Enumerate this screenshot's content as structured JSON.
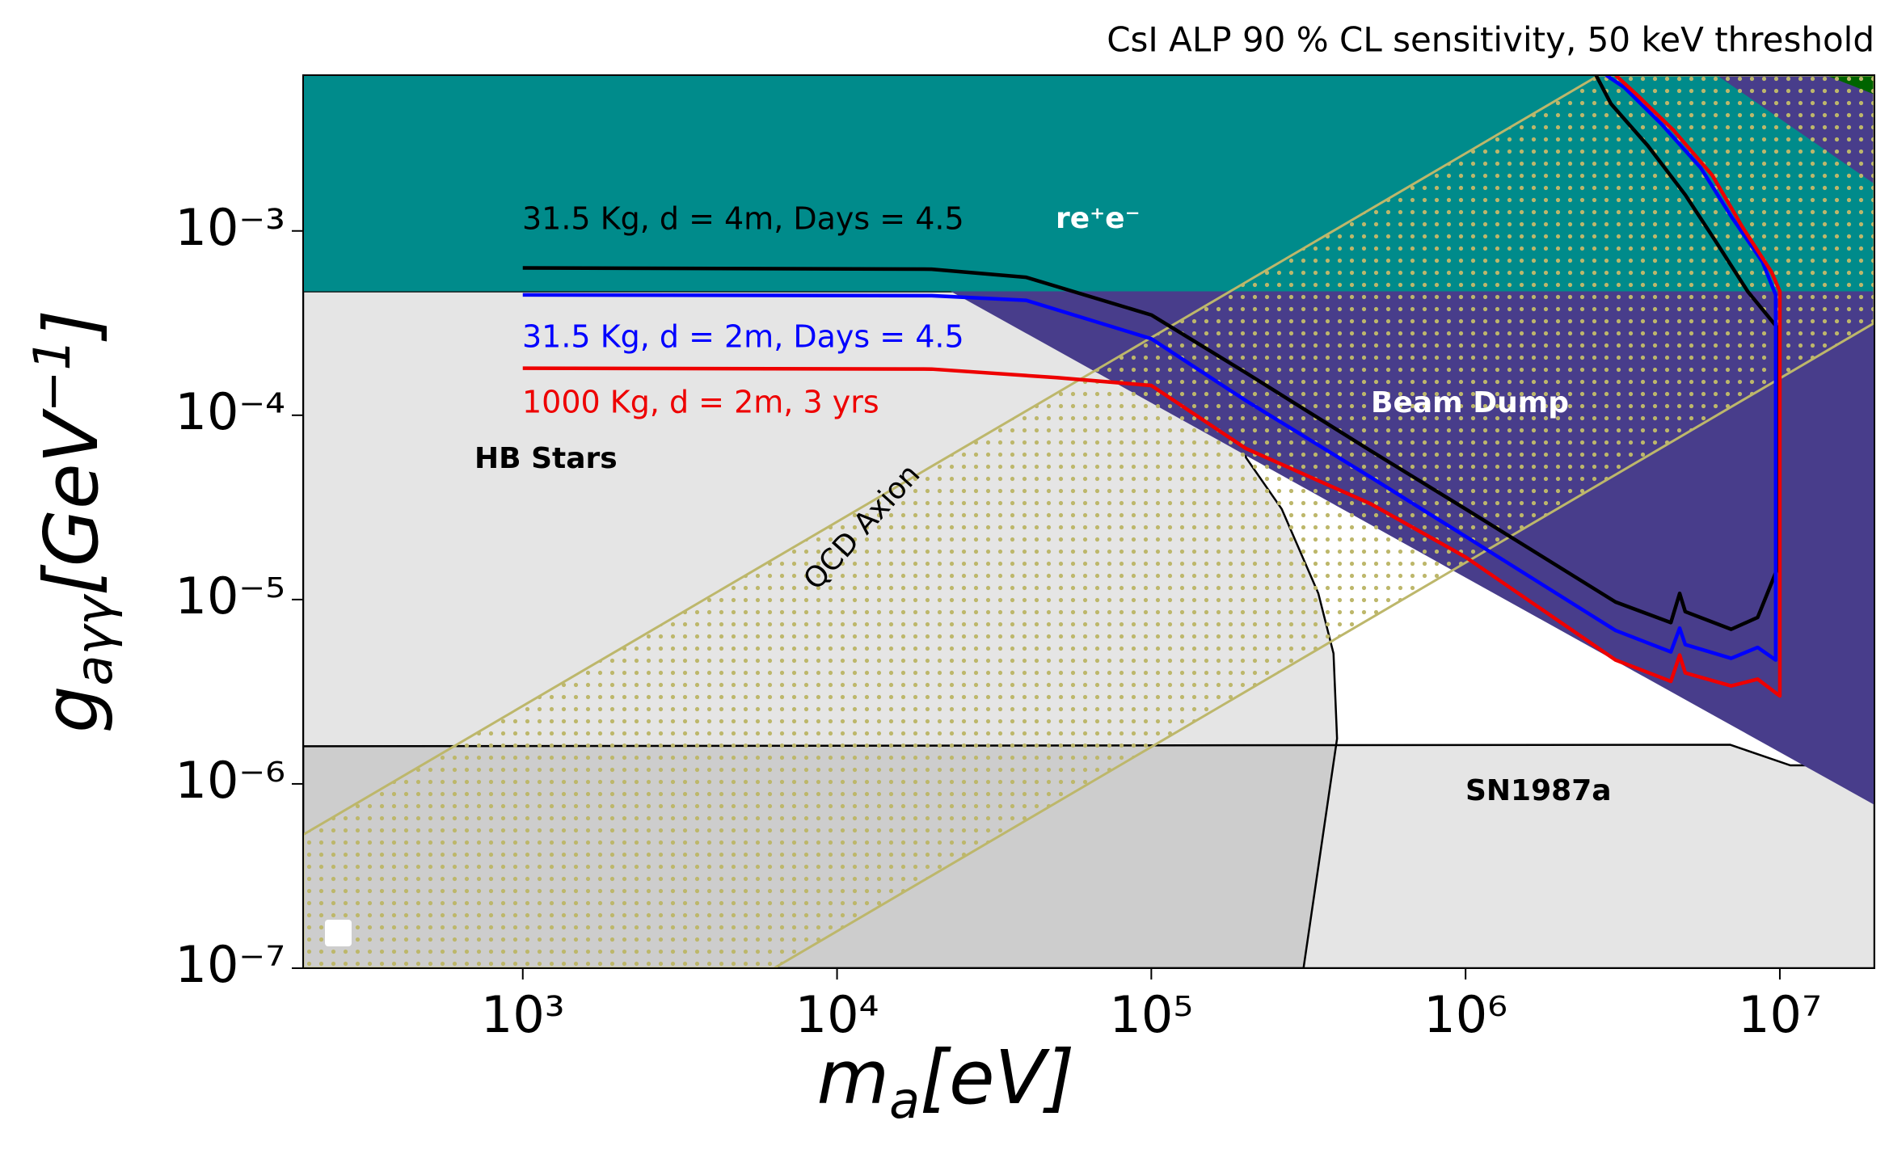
{
  "chart_data": {
    "type": "line",
    "title": "CsI ALP 90 % CL sensitivity, 50 keV threshold",
    "xlabel_parts": [
      "m",
      "a",
      "[eV]"
    ],
    "ylabel_parts": [
      "g",
      "aγγ",
      "[GeV",
      "−1",
      "]"
    ],
    "xscale": "log",
    "yscale": "log",
    "xlim": [
      200,
      20000000
    ],
    "ylim": [
      1e-07,
      0.007
    ],
    "xticks": [
      {
        "value": 1000,
        "label": "10³"
      },
      {
        "value": 10000,
        "label": "10⁴"
      },
      {
        "value": 100000,
        "label": "10⁵"
      },
      {
        "value": 1000000,
        "label": "10⁶"
      },
      {
        "value": 10000000,
        "label": "10⁷"
      }
    ],
    "yticks": [
      {
        "value": 1e-07,
        "label": "10⁻⁷"
      },
      {
        "value": 1e-06,
        "label": "10⁻⁶"
      },
      {
        "value": 1e-05,
        "label": "10⁻⁵"
      },
      {
        "value": 0.0001,
        "label": "10⁻⁴"
      },
      {
        "value": 0.001,
        "label": "10⁻³"
      }
    ],
    "regions": [
      {
        "name": "HB Stars",
        "color": "rgba(0,0,0,0.1)",
        "x": [
          200,
          200000,
          200000,
          260000,
          340000,
          380000,
          390000,
          305000,
          200
        ],
        "y": [
          0.00047,
          0.00047,
          5.9e-05,
          3.1e-05,
          1.08e-05,
          5.1e-06,
          1.76e-06,
          1e-07,
          1e-07
        ]
      },
      {
        "name": "SN1987a",
        "color": "rgba(0,0,0,0.1)",
        "x": [
          200,
          6950000,
          10800000,
          20000000,
          20000000,
          200
        ],
        "y": [
          1.6e-06,
          1.63e-06,
          1.26e-06,
          1.26e-06,
          1e-07,
          1e-07
        ]
      },
      {
        "name": "Beam Dump",
        "color": "#483d8b",
        "x": [
          23000,
          20000000,
          20000000
        ],
        "y": [
          0.00047,
          0.00047,
          7.7e-07
        ]
      },
      {
        "name": "re⁺e⁻",
        "color": "#008b8b",
        "x": [
          200,
          20000000,
          20000000,
          200
        ],
        "y": [
          0.00047,
          0.00047,
          0.007,
          0.007
        ]
      },
      {
        "color": "#483d8b",
        "x": [
          6300000,
          20000000,
          20000000
        ],
        "y": [
          0.007,
          0.007,
          0.0018
        ]
      },
      {
        "color": "#006400",
        "x": [
          14000000,
          20000000,
          20000000
        ],
        "y": [
          0.007,
          0.007,
          0.0055
        ]
      },
      {
        "name": "QCD Axion",
        "color": "#bdb76b",
        "pattern": "dots",
        "x": [
          200,
          2660000,
          20000000,
          20000000,
          6300,
          200
        ],
        "y": [
          5.3e-07,
          0.007,
          0.007,
          0.000317,
          1e-07,
          1e-07
        ]
      }
    ],
    "series": [
      {
        "name": "31.5 Kg, d = 4m, Days = 4.5",
        "color": "#000000",
        "x": [
          1000,
          20000,
          40000,
          100000,
          200000,
          500000,
          1000000,
          3000000,
          4500000,
          4800000,
          5000000,
          7000000,
          8500000,
          9800000,
          9800000,
          7900000,
          6300000,
          5000000,
          3800000,
          2900000,
          2600000
        ],
        "values": [
          0.00063,
          0.00062,
          0.00056,
          0.00035,
          0.00017,
          6.4e-05,
          3.1e-05,
          9.7e-06,
          7.5e-06,
          1.08e-05,
          8.6e-06,
          6.9e-06,
          8e-06,
          1.46e-05,
          0.0003,
          0.00047,
          0.00086,
          0.00157,
          0.0029,
          0.0049,
          0.007
        ]
      },
      {
        "name": "31.5 Kg, d = 2m, Days = 4.5",
        "color": "#0000ff",
        "x": [
          1000,
          20000,
          40000,
          100000,
          200000,
          500000,
          1000000,
          3000000,
          4500000,
          4800000,
          5000000,
          7000000,
          8500000,
          9700000,
          9700000,
          8800000,
          7000000,
          5600000,
          4200000,
          3200000,
          2800000
        ],
        "values": [
          0.00045,
          0.000445,
          0.00042,
          0.00026,
          0.00012,
          4.6e-05,
          2.2e-05,
          6.8e-06,
          5.2e-06,
          7e-06,
          5.7e-06,
          4.8e-06,
          5.5e-06,
          4.7e-06,
          0.00045,
          0.00068,
          0.0012,
          0.0022,
          0.0038,
          0.006,
          0.007
        ]
      },
      {
        "name": "1000 Kg, d = 2m, 3 yrs",
        "color": "#ee0000",
        "x": [
          1000,
          20000,
          50000,
          100000,
          200000,
          500000,
          1000000,
          3000000,
          4500000,
          4800000,
          5000000,
          7000000,
          8500000,
          10000000,
          10000000,
          9400000,
          7600000,
          6100000,
          4600000,
          3500000,
          3000000
        ],
        "values": [
          0.00018,
          0.000178,
          0.00016,
          0.000145,
          6.6e-05,
          3.3e-05,
          1.7e-05,
          4.7e-06,
          3.6e-06,
          5e-06,
          4e-06,
          3.4e-06,
          3.7e-06,
          3e-06,
          0.00047,
          0.0006,
          0.00105,
          0.002,
          0.0035,
          0.0055,
          0.007
        ]
      }
    ]
  }
}
